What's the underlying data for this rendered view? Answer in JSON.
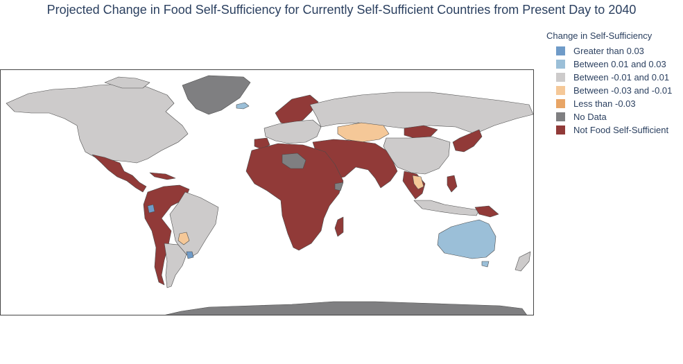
{
  "title": "Projected Change in Food Self-Sufficiency for Currently Self-Sufficient Countries from Present Day to 2040",
  "legend": {
    "title": "Change in Self-Sufficiency",
    "items": [
      {
        "label": "Greater than 0.03",
        "color": "#6f9bc8"
      },
      {
        "label": "Between 0.01 and 0.03",
        "color": "#9bbfd8"
      },
      {
        "label": "Between -0.01 and 0.01",
        "color": "#cdcbcb"
      },
      {
        "label": "Between -0.03 and -0.01",
        "color": "#f5c898"
      },
      {
        "label": "Less than -0.03",
        "color": "#e8a566"
      },
      {
        "label": "No Data",
        "color": "#7f7f81"
      },
      {
        "label": "Not Food Self-Sufficient",
        "color": "#913a38"
      }
    ]
  },
  "colors": {
    "greater_than_003": "#6f9bc8",
    "between_001_003": "#9bbfd8",
    "between_neg001_001": "#cdcbcb",
    "between_neg003_neg001": "#f5c898",
    "less_than_neg003": "#e8a566",
    "no_data": "#7f7f81",
    "not_self_sufficient": "#913a38"
  }
}
